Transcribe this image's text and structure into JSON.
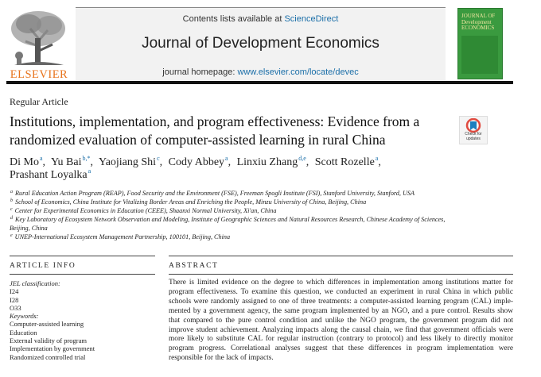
{
  "header": {
    "publisher": "ELSEVIER",
    "contents_prefix": "Contents lists available at",
    "contents_link": "ScienceDirect",
    "journal": "Journal of Development Economics",
    "homepage_label": "journal homepage:",
    "homepage_url": "www.elsevier.com/locate/devec",
    "cover_lines": [
      "JOURNAL OF",
      "Development",
      "ECONOMICS"
    ],
    "badge": [
      "Check for",
      "updates"
    ]
  },
  "article": {
    "type": "Regular Article",
    "title": "Institutions, implementation, and program effectiveness: Evidence from a randomized evaluation of computer-assisted learning in rural China",
    "authors": [
      {
        "name": "Di Mo",
        "sup": "a"
      },
      {
        "name": "Yu Bai",
        "sup": "b,*"
      },
      {
        "name": "Yaojiang Shi",
        "sup": "c"
      },
      {
        "name": "Cody Abbey",
        "sup": "a"
      },
      {
        "name": "Linxiu Zhang",
        "sup": "d,e"
      },
      {
        "name": "Scott Rozelle",
        "sup": "a"
      },
      {
        "name": "Prashant Loyalka",
        "sup": "a"
      }
    ],
    "affiliations": [
      {
        "sup": "a",
        "text": "Rural Education Action Program (REAP), Food Security and the Environment (FSE), Freeman Spogli Institute (FSI), Stanford University, Stanford, USA"
      },
      {
        "sup": "b",
        "text": "School of Economics, China Institute for Vitalizing Border Areas and Enriching the People, Minzu University of China, Beijing, China"
      },
      {
        "sup": "c",
        "text": "Center for Experimental Economics in Education (CEEE), Shaanxi Normal University, Xi'an, China"
      },
      {
        "sup": "d",
        "text": "Key Laboratory of Ecosystem Network Observation and Modeling, Institute of Geographic Sciences and Natural Resources Research, Chinese Academy of Sciences, Beijing, China"
      },
      {
        "sup": "e",
        "text": "UNEP-International Ecosystem Management Partnership, 100101, Beijing, China"
      }
    ]
  },
  "article_info": {
    "heading": "ARTICLE INFO",
    "jel_label": "JEL classification:",
    "jel": [
      "I24",
      "I28",
      "O33"
    ],
    "keywords_label": "Keywords:",
    "keywords": [
      "Computer-assisted learning",
      "Education",
      "External validity of program",
      "Implementation by government",
      "Randomized controlled trial"
    ]
  },
  "abstract": {
    "heading": "ABSTRACT",
    "lines": [
      "There is limited evidence on the degree to which differences in implementation among institutions matter for",
      "program effectiveness. To examine this question, we conducted an experiment in rural China in which public",
      "schools were randomly assigned to one of three treatments: a computer-assisted learning program (CAL) imple-",
      "mented by a government agency, the same program implemented by an NGO, and a pure control. Results show",
      "that compared to the pure control condition and unlike the NGO program, the government program did not",
      "improve student achievement. Analyzing impacts along the causal chain, we find that government officials were",
      "more likely to substitute CAL for regular instruction (contrary to protocol) and less likely to directly monitor",
      "program progress. Correlational analyses suggest that these differences in program implementation were",
      "responsible for the lack of impacts."
    ]
  }
}
